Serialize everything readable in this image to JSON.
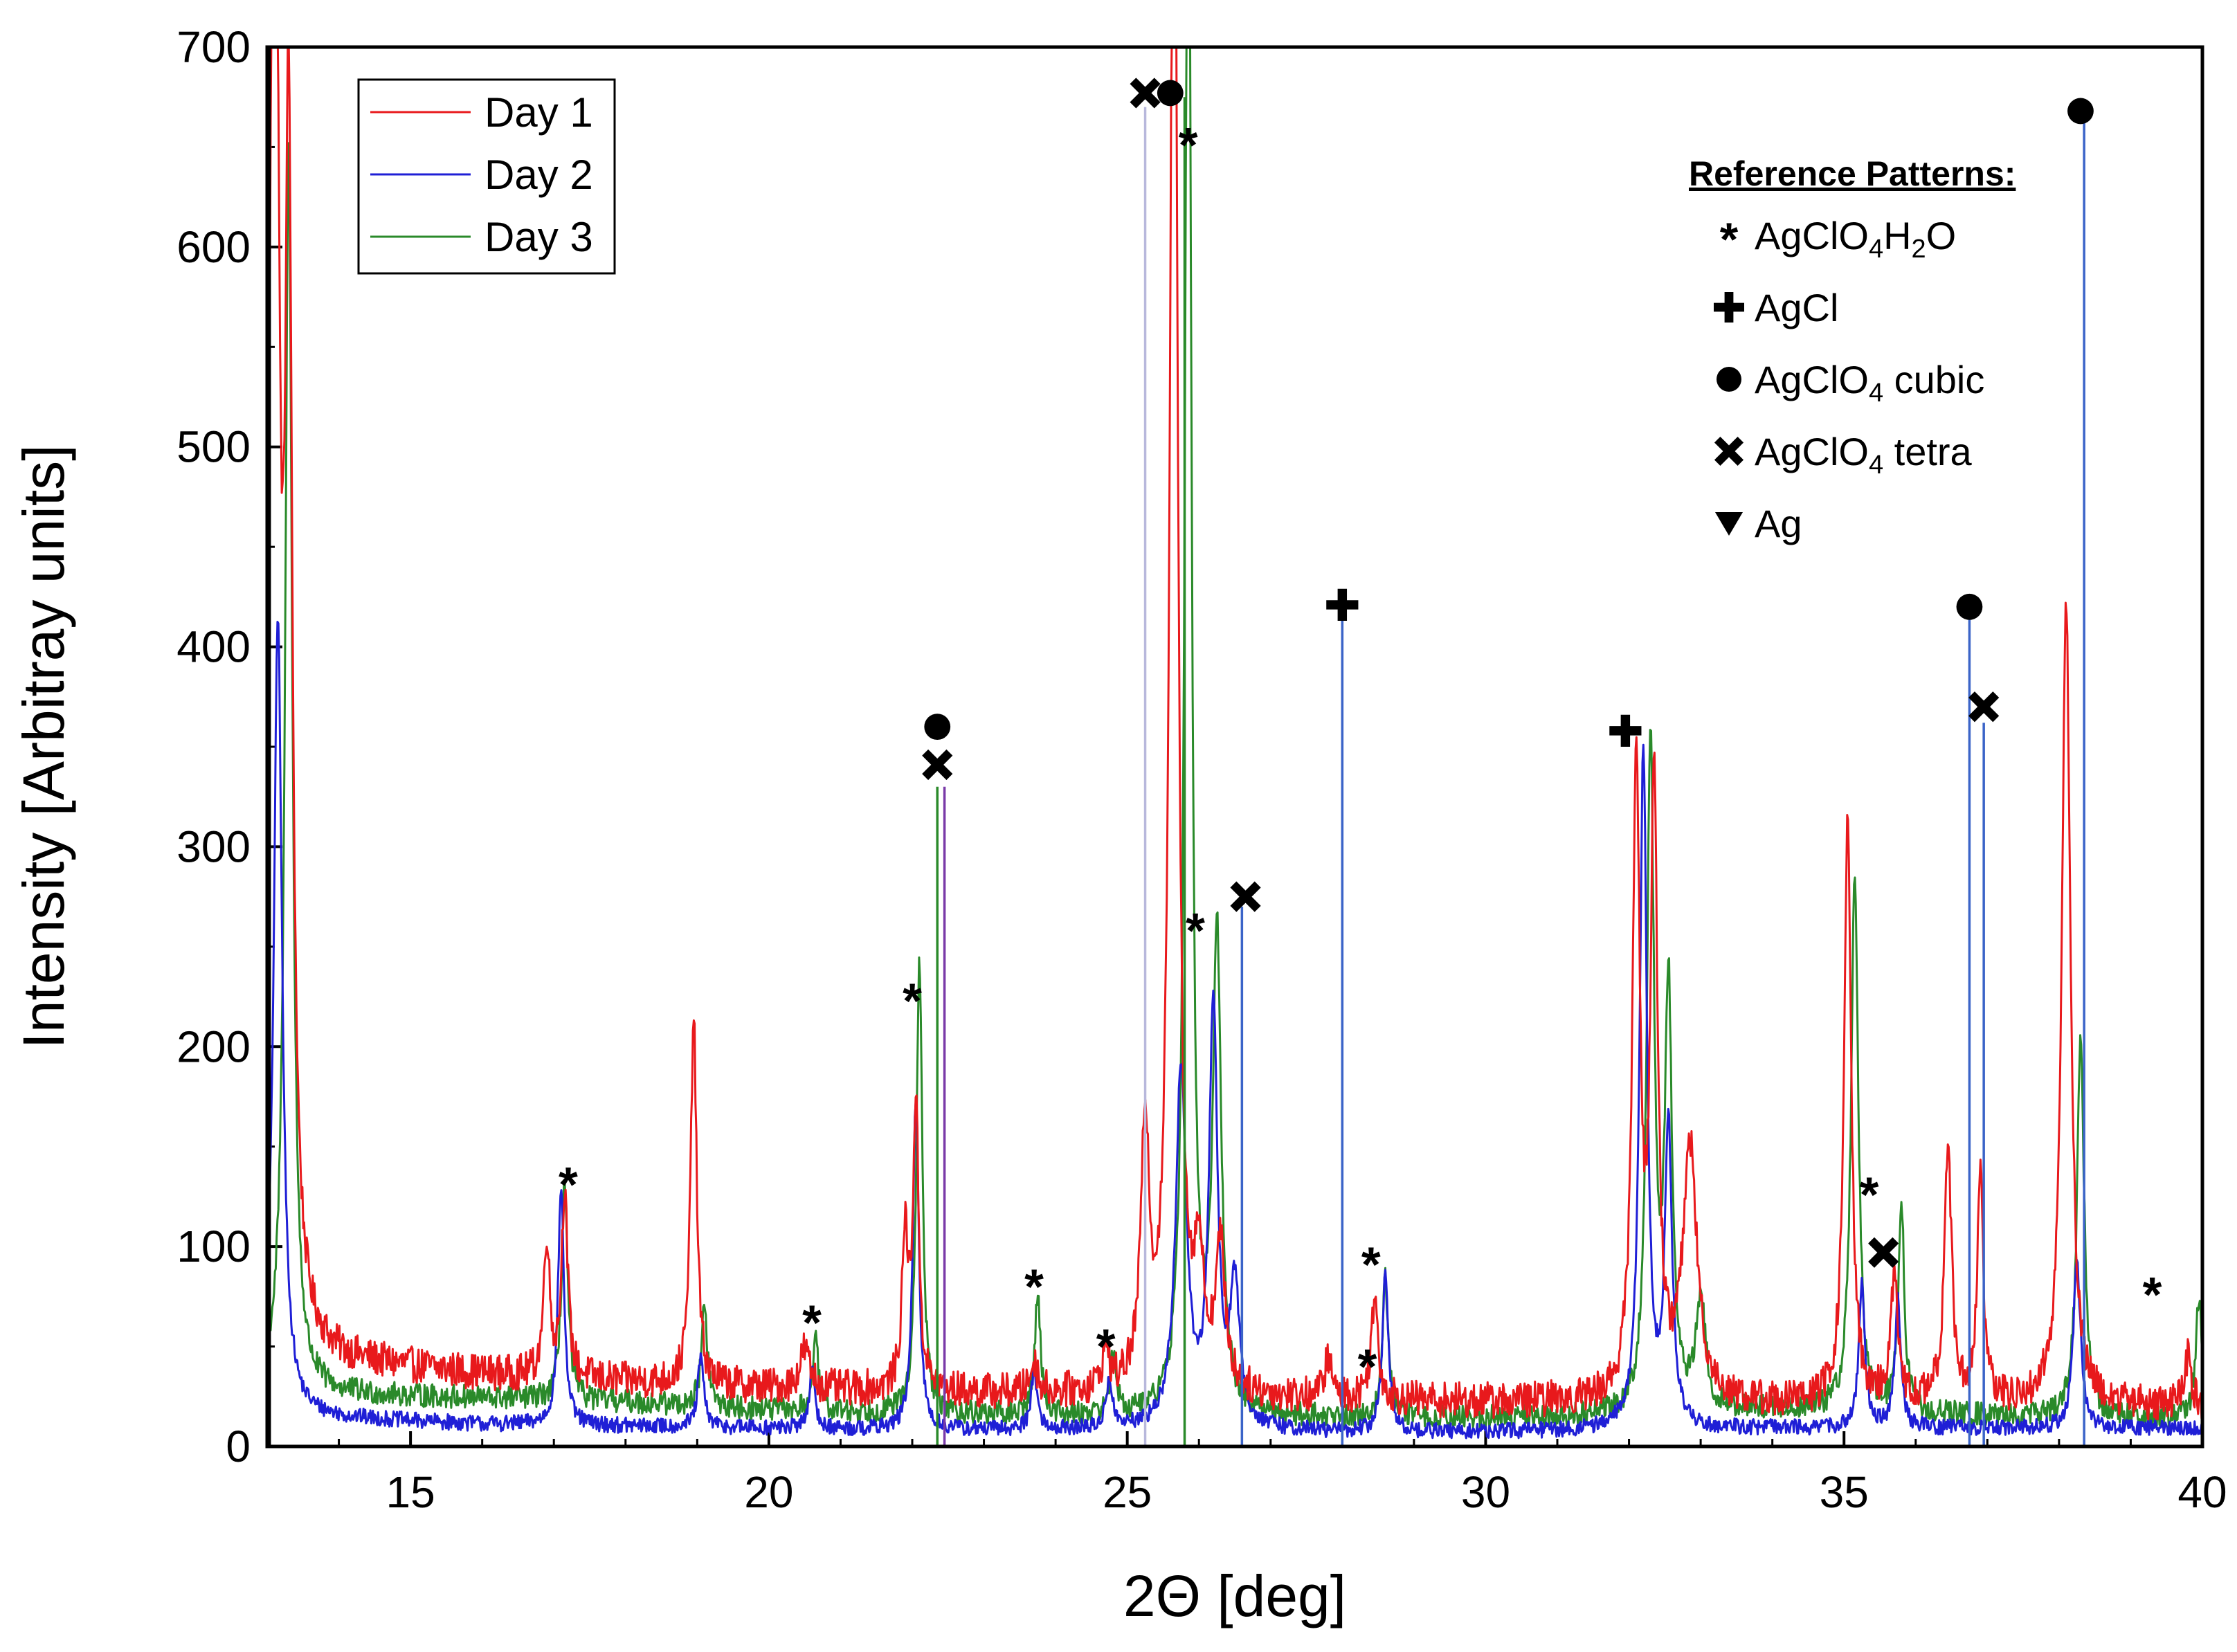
{
  "chart_data": {
    "type": "line",
    "xlabel": "2Θ [deg]",
    "ylabel": "Intensity [Arbitray units]",
    "xlim": [
      13,
      40
    ],
    "ylim": [
      0,
      700
    ],
    "x_ticks": [
      15,
      20,
      25,
      30,
      35,
      40
    ],
    "y_ticks": [
      0,
      100,
      200,
      300,
      400,
      500,
      600,
      700
    ],
    "x_tick_labels": [
      "15",
      "20",
      "25",
      "30",
      "35",
      "40"
    ],
    "y_tick_labels": [
      "0",
      "100",
      "200",
      "300",
      "400",
      "500",
      "600",
      "700"
    ],
    "legend_position": "top-left",
    "series": [
      {
        "name": "Day 1",
        "color": "#e8191c",
        "baseline": [
          [
            13,
            48
          ],
          [
            14,
            42
          ],
          [
            16,
            36
          ],
          [
            18,
            32
          ],
          [
            20,
            29
          ],
          [
            22,
            27
          ],
          [
            24,
            26
          ],
          [
            26,
            25
          ],
          [
            28,
            23
          ],
          [
            30,
            22
          ],
          [
            32,
            22
          ],
          [
            34,
            21
          ],
          [
            36,
            21
          ],
          [
            38,
            21
          ],
          [
            40,
            20
          ]
        ],
        "noise": 9,
        "peaks": [
          [
            13.1,
            900,
            0.07
          ],
          [
            13.3,
            560,
            0.06
          ],
          [
            16.9,
            70,
            0.05
          ],
          [
            17.15,
            95,
            0.05
          ],
          [
            18.95,
            185,
            0.05
          ],
          [
            20.5,
            20,
            0.08
          ],
          [
            21.9,
            75,
            0.05
          ],
          [
            22.05,
            140,
            0.05
          ],
          [
            23.7,
            15,
            0.06
          ],
          [
            24.7,
            20,
            0.06
          ],
          [
            25.25,
            130,
            0.07
          ],
          [
            25.65,
            900,
            0.06
          ],
          [
            26.0,
            60,
            0.08
          ],
          [
            26.3,
            70,
            0.08
          ],
          [
            27.8,
            20,
            0.06
          ],
          [
            28.45,
            50,
            0.06
          ],
          [
            32.1,
            320,
            0.06
          ],
          [
            32.35,
            300,
            0.06
          ],
          [
            32.85,
            125,
            0.12
          ],
          [
            35.05,
            290,
            0.06
          ],
          [
            35.7,
            60,
            0.06
          ],
          [
            36.45,
            130,
            0.06
          ],
          [
            36.9,
            115,
            0.05
          ],
          [
            38.1,
            405,
            0.07
          ],
          [
            39.8,
            25,
            0.05
          ]
        ]
      },
      {
        "name": "Day 2",
        "color": "#1f1fd6",
        "baseline": [
          [
            13,
            16
          ],
          [
            14,
            14
          ],
          [
            16,
            11
          ],
          [
            18,
            10
          ],
          [
            20,
            9
          ],
          [
            22,
            8
          ],
          [
            24,
            8
          ],
          [
            26,
            8
          ],
          [
            28,
            7
          ],
          [
            30,
            7
          ],
          [
            32,
            8
          ],
          [
            34,
            9
          ],
          [
            36,
            9
          ],
          [
            38,
            9
          ],
          [
            40,
            9
          ]
        ],
        "noise": 4,
        "peaks": [
          [
            13.15,
            400,
            0.07
          ],
          [
            17.1,
            120,
            0.05
          ],
          [
            19.05,
            35,
            0.05
          ],
          [
            20.6,
            28,
            0.05
          ],
          [
            22.05,
            165,
            0.05
          ],
          [
            23.7,
            30,
            0.05
          ],
          [
            24.75,
            25,
            0.05
          ],
          [
            25.75,
            180,
            0.09
          ],
          [
            26.2,
            210,
            0.07
          ],
          [
            26.5,
            70,
            0.08
          ],
          [
            28.6,
            80,
            0.05
          ],
          [
            32.2,
            340,
            0.06
          ],
          [
            32.55,
            150,
            0.06
          ],
          [
            35.25,
            75,
            0.05
          ],
          [
            35.75,
            65,
            0.05
          ],
          [
            38.25,
            85,
            0.06
          ]
        ]
      },
      {
        "name": "Day 3",
        "color": "#2a8a2a",
        "baseline": [
          [
            13,
            30
          ],
          [
            14,
            26
          ],
          [
            16,
            24
          ],
          [
            18,
            22
          ],
          [
            20,
            18
          ],
          [
            22,
            16
          ],
          [
            24,
            15
          ],
          [
            26,
            15
          ],
          [
            28,
            14
          ],
          [
            30,
            14
          ],
          [
            32,
            15
          ],
          [
            34,
            18
          ],
          [
            36,
            16
          ],
          [
            38,
            14
          ],
          [
            40,
            14
          ]
        ],
        "noise": 6,
        "peaks": [
          [
            13.3,
            620,
            0.06
          ],
          [
            17.15,
            110,
            0.05
          ],
          [
            19.1,
            50,
            0.05
          ],
          [
            20.65,
            35,
            0.05
          ],
          [
            22.1,
            225,
            0.05
          ],
          [
            23.75,
            60,
            0.05
          ],
          [
            24.8,
            30,
            0.05
          ],
          [
            25.85,
            900,
            0.05
          ],
          [
            26.25,
            240,
            0.07
          ],
          [
            28.6,
            70,
            0.05
          ],
          [
            32.3,
            335,
            0.06
          ],
          [
            32.55,
            210,
            0.06
          ],
          [
            33.0,
            55,
            0.08
          ],
          [
            35.15,
            270,
            0.06
          ],
          [
            35.8,
            105,
            0.05
          ],
          [
            38.3,
            190,
            0.06
          ],
          [
            39.95,
            60,
            0.05
          ]
        ]
      }
    ],
    "reference_lines": [
      {
        "x": 22.35,
        "top": 330,
        "color": "#2a8a2a"
      },
      {
        "x": 22.45,
        "top": 330,
        "color": "#7a3aa8"
      },
      {
        "x": 25.25,
        "top": 670,
        "color": "#b8b8dc"
      },
      {
        "x": 25.8,
        "top": 675,
        "color": "#2a8a2a"
      },
      {
        "x": 26.6,
        "top": 270,
        "color": "#3b64c8"
      },
      {
        "x": 28.0,
        "top": 415,
        "color": "#3b64c8"
      },
      {
        "x": 36.75,
        "top": 415,
        "color": "#3b64c8"
      },
      {
        "x": 36.95,
        "top": 362,
        "color": "#3b64c8"
      },
      {
        "x": 38.35,
        "top": 665,
        "color": "#3b64c8"
      }
    ],
    "markers": [
      {
        "symbol": "asterisk",
        "x": 17.2,
        "y": 133
      },
      {
        "symbol": "asterisk",
        "x": 20.6,
        "y": 64
      },
      {
        "symbol": "asterisk",
        "x": 22.0,
        "y": 225
      },
      {
        "symbol": "asterisk",
        "x": 23.7,
        "y": 82
      },
      {
        "symbol": "asterisk",
        "x": 24.7,
        "y": 52
      },
      {
        "symbol": "asterisk",
        "x": 25.85,
        "y": 653
      },
      {
        "symbol": "asterisk",
        "x": 25.95,
        "y": 260
      },
      {
        "symbol": "asterisk",
        "x": 28.35,
        "y": 42
      },
      {
        "symbol": "asterisk",
        "x": 28.4,
        "y": 93
      },
      {
        "symbol": "asterisk",
        "x": 35.35,
        "y": 128
      },
      {
        "symbol": "asterisk",
        "x": 39.3,
        "y": 78
      },
      {
        "symbol": "plus",
        "x": 28.0,
        "y": 421
      },
      {
        "symbol": "plus",
        "x": 31.95,
        "y": 358
      },
      {
        "symbol": "circle",
        "x": 22.35,
        "y": 360
      },
      {
        "symbol": "circle",
        "x": 25.6,
        "y": 677
      },
      {
        "symbol": "circle",
        "x": 36.75,
        "y": 420
      },
      {
        "symbol": "circle",
        "x": 38.3,
        "y": 668
      },
      {
        "symbol": "cross",
        "x": 22.35,
        "y": 341
      },
      {
        "symbol": "cross",
        "x": 25.25,
        "y": 677
      },
      {
        "symbol": "cross",
        "x": 26.65,
        "y": 275
      },
      {
        "symbol": "cross",
        "x": 35.55,
        "y": 97
      },
      {
        "symbol": "cross",
        "x": 36.95,
        "y": 370
      }
    ],
    "reference_legend": {
      "title": "Reference Patterns:",
      "entries": [
        {
          "symbol": "asterisk",
          "label": "AgClO",
          "sub1": "4",
          "mid": "H",
          "sub2": "2",
          "tail": "O"
        },
        {
          "symbol": "plus",
          "label": "AgCl",
          "sub1": "",
          "mid": "",
          "sub2": "",
          "tail": ""
        },
        {
          "symbol": "circle",
          "label": "AgClO",
          "sub1": "4",
          "mid": " cubic",
          "sub2": "",
          "tail": ""
        },
        {
          "symbol": "cross",
          "label": "AgClO",
          "sub1": "4",
          "mid": " tetra",
          "sub2": "",
          "tail": ""
        },
        {
          "symbol": "triangle-down",
          "label": "Ag",
          "sub1": "",
          "mid": "",
          "sub2": "",
          "tail": ""
        }
      ]
    }
  }
}
